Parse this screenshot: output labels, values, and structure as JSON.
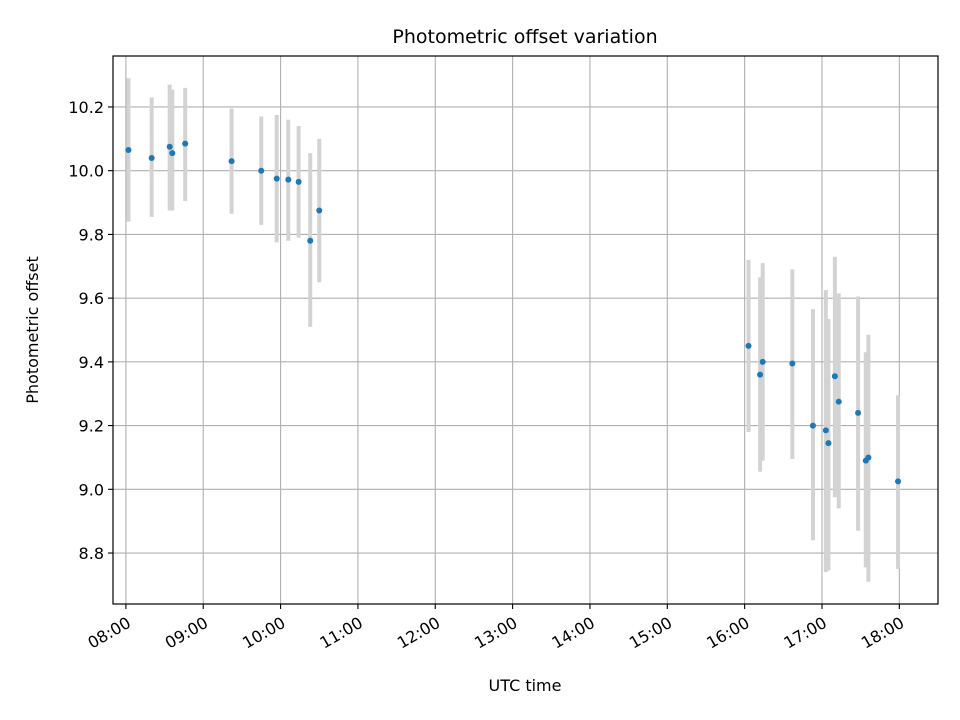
{
  "chart_data": {
    "type": "scatter",
    "title": "Photometric offset variation",
    "xlabel": "UTC time",
    "ylabel": "Photometric offset",
    "grid": true,
    "x_unit": "hours UTC",
    "xlim": [
      "07:50",
      "18:30"
    ],
    "ylim": [
      8.64,
      10.36
    ],
    "x_ticks": [
      "08:00",
      "09:00",
      "10:00",
      "11:00",
      "12:00",
      "13:00",
      "14:00",
      "15:00",
      "16:00",
      "17:00",
      "18:00"
    ],
    "y_ticks": [
      "8.8",
      "9.0",
      "9.2",
      "9.4",
      "9.6",
      "9.8",
      "10.0",
      "10.2"
    ],
    "errorbar_color": "#d3d3d3",
    "marker_color": "#1f77b4",
    "points": [
      {
        "x": "08:02",
        "y": 10.065,
        "ylo": 9.84,
        "yhi": 10.29
      },
      {
        "x": "08:20",
        "y": 10.04,
        "ylo": 9.855,
        "yhi": 10.23
      },
      {
        "x": "08:34",
        "y": 10.075,
        "ylo": 9.875,
        "yhi": 10.27
      },
      {
        "x": "08:36",
        "y": 10.055,
        "ylo": 9.875,
        "yhi": 10.255
      },
      {
        "x": "08:46",
        "y": 10.085,
        "ylo": 9.905,
        "yhi": 10.26
      },
      {
        "x": "09:22",
        "y": 10.03,
        "ylo": 9.865,
        "yhi": 10.195
      },
      {
        "x": "09:45",
        "y": 10.0,
        "ylo": 9.83,
        "yhi": 10.17
      },
      {
        "x": "09:57",
        "y": 9.975,
        "ylo": 9.775,
        "yhi": 10.175
      },
      {
        "x": "10:06",
        "y": 9.972,
        "ylo": 9.78,
        "yhi": 10.16
      },
      {
        "x": "10:14",
        "y": 9.965,
        "ylo": 9.79,
        "yhi": 10.14
      },
      {
        "x": "10:23",
        "y": 9.78,
        "ylo": 9.51,
        "yhi": 10.055
      },
      {
        "x": "10:30",
        "y": 9.875,
        "ylo": 9.65,
        "yhi": 10.1
      },
      {
        "x": "16:03",
        "y": 9.45,
        "ylo": 9.18,
        "yhi": 9.72
      },
      {
        "x": "16:12",
        "y": 9.36,
        "ylo": 9.055,
        "yhi": 9.665
      },
      {
        "x": "16:14",
        "y": 9.4,
        "ylo": 9.09,
        "yhi": 9.71
      },
      {
        "x": "16:37",
        "y": 9.395,
        "ylo": 9.095,
        "yhi": 9.69
      },
      {
        "x": "16:53",
        "y": 9.2,
        "ylo": 8.84,
        "yhi": 9.565
      },
      {
        "x": "17:03",
        "y": 9.185,
        "ylo": 8.74,
        "yhi": 9.625
      },
      {
        "x": "17:05",
        "y": 9.145,
        "ylo": 8.745,
        "yhi": 9.535
      },
      {
        "x": "17:10",
        "y": 9.355,
        "ylo": 8.975,
        "yhi": 9.73
      },
      {
        "x": "17:13",
        "y": 9.275,
        "ylo": 8.94,
        "yhi": 9.615
      },
      {
        "x": "17:28",
        "y": 9.24,
        "ylo": 8.87,
        "yhi": 9.605
      },
      {
        "x": "17:34",
        "y": 9.09,
        "ylo": 8.755,
        "yhi": 9.43
      },
      {
        "x": "17:36",
        "y": 9.1,
        "ylo": 8.71,
        "yhi": 9.485
      },
      {
        "x": "17:59",
        "y": 9.025,
        "ylo": 8.75,
        "yhi": 9.295
      }
    ]
  }
}
